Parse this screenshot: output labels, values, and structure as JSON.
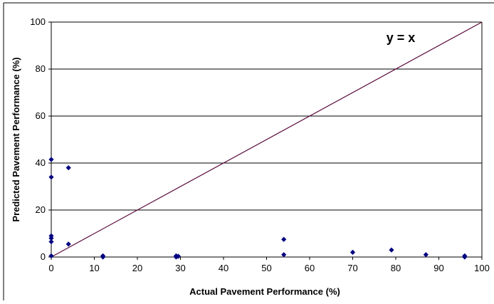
{
  "chart_data": {
    "type": "scatter",
    "xlabel": "Actual Pavement Performance (%)",
    "ylabel": "Predicted Pavement Performance (%)",
    "xlim": [
      0,
      100
    ],
    "ylim": [
      0,
      100
    ],
    "x_ticks": [
      "0",
      "10",
      "20",
      "30",
      "40",
      "50",
      "60",
      "70",
      "80",
      "90",
      "100"
    ],
    "y_ticks": [
      "0",
      "20",
      "40",
      "60",
      "80",
      "100"
    ],
    "grid": "horizontal",
    "legend": "none",
    "annotation": "y = x",
    "reference_line": {
      "from": [
        0,
        0
      ],
      "to": [
        100,
        100
      ]
    },
    "series": [
      {
        "marker": "diamond",
        "points": [
          [
            0,
            41.5
          ],
          [
            0,
            34
          ],
          [
            0,
            9
          ],
          [
            0,
            8
          ],
          [
            0,
            6.5
          ],
          [
            0,
            0.5
          ],
          [
            4,
            38
          ],
          [
            4,
            5.5
          ],
          [
            12,
            0.5
          ],
          [
            12,
            0
          ],
          [
            29,
            0.5
          ],
          [
            29,
            0
          ],
          [
            29.5,
            0.3
          ],
          [
            54,
            7.5
          ],
          [
            54,
            1
          ],
          [
            70,
            2
          ],
          [
            79,
            3
          ],
          [
            87,
            1
          ],
          [
            96,
            0.5
          ],
          [
            96,
            0
          ]
        ]
      }
    ],
    "colors": {
      "marker": "#000080",
      "reference_line": "#5a0a3c",
      "grid": "#000000",
      "axis": "#000000"
    }
  }
}
